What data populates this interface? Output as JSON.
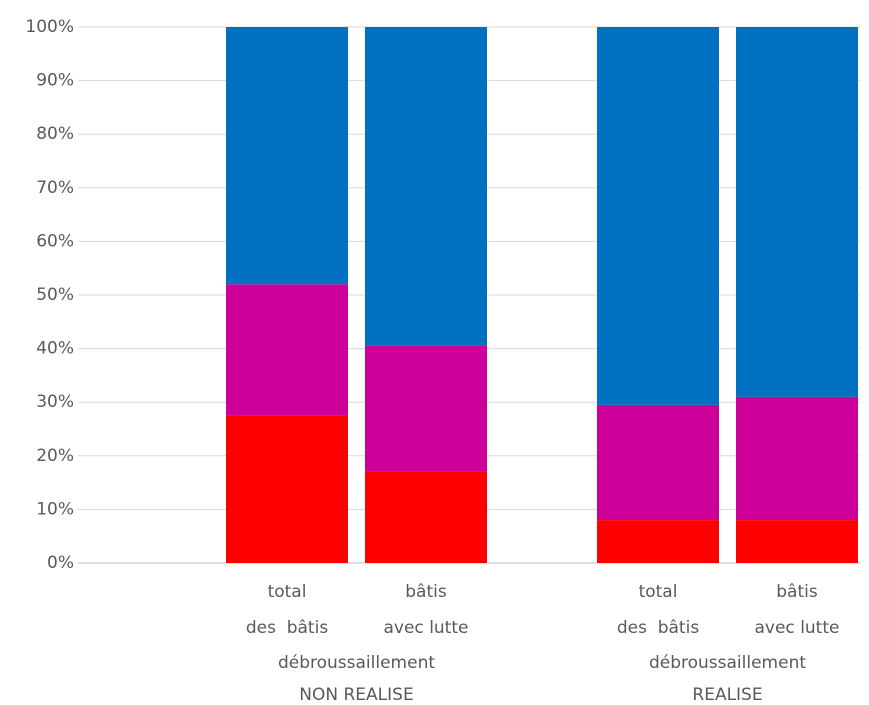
{
  "chart_data": {
    "type": "stacked_bar",
    "categories": [
      [
        "total",
        "des  bâtis"
      ],
      [
        "bâtis",
        "avec lutte"
      ],
      [
        "total",
        "des  bâtis"
      ],
      [
        "bâtis",
        "avec lutte"
      ]
    ],
    "groups": [
      [
        "débroussaillement",
        "NON REALISE"
      ],
      [
        "débroussaillement",
        "REALISE"
      ]
    ],
    "series": [
      {
        "color": "#ff0000",
        "values": [
          27.5,
          17,
          8,
          8
        ]
      },
      {
        "color": "#cc0099",
        "values": [
          24.5,
          23.5,
          21.5,
          23
        ]
      },
      {
        "color": "#0070c0",
        "values": [
          48,
          59.5,
          70.5,
          69
        ]
      }
    ],
    "ylim": [
      0,
      100
    ],
    "yticks": [
      {
        "value": 0,
        "label": "0%"
      },
      {
        "value": 10,
        "label": "10%"
      },
      {
        "value": 20,
        "label": "20%"
      },
      {
        "value": 30,
        "label": "30%"
      },
      {
        "value": 40,
        "label": "40%"
      },
      {
        "value": 50,
        "label": "50%"
      },
      {
        "value": 60,
        "label": "60%"
      },
      {
        "value": 70,
        "label": "70%"
      },
      {
        "value": 80,
        "label": "80%"
      },
      {
        "value": 90,
        "label": "90%"
      },
      {
        "value": 100,
        "label": "100%"
      }
    ],
    "grid": true
  }
}
